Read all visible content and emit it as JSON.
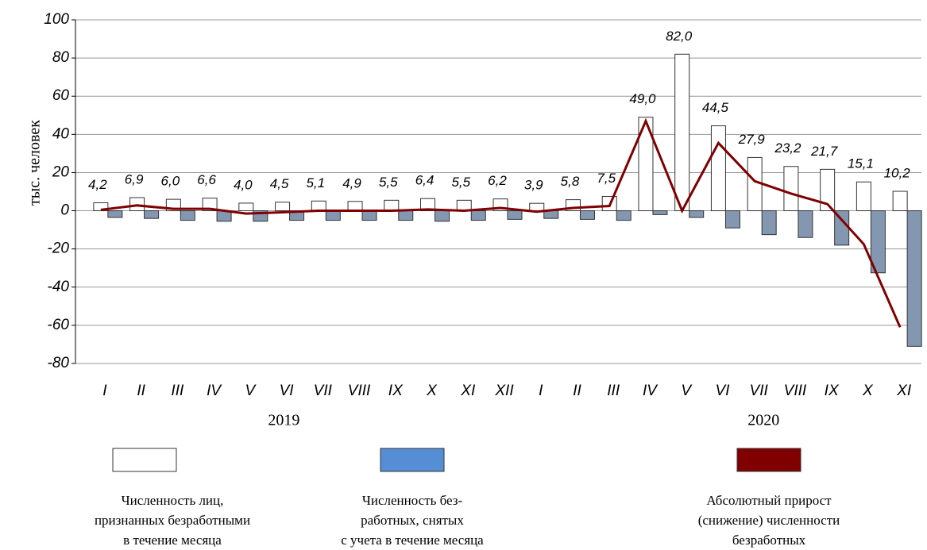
{
  "chart_data": {
    "type": "bar_line",
    "y_label": "тыс. человек",
    "categories": [
      "I",
      "II",
      "III",
      "IV",
      "V",
      "VI",
      "VII",
      "VIII",
      "IX",
      "X",
      "XI",
      "XII",
      "I",
      "II",
      "III",
      "IV",
      "V",
      "VI",
      "VII",
      "VIII",
      "IX",
      "X",
      "XI"
    ],
    "years": [
      "2019",
      "2020"
    ],
    "series": [
      {
        "name": "Численность лиц,\nпризнанных безработными\nв течение месяца",
        "type": "bar",
        "color": "#ffffff",
        "values": [
          4.2,
          6.9,
          6.0,
          6.6,
          4.0,
          4.5,
          5.1,
          4.9,
          5.5,
          6.4,
          5.5,
          6.2,
          3.9,
          5.8,
          7.5,
          49.0,
          82.0,
          44.5,
          27.9,
          23.2,
          21.7,
          15.1,
          10.2
        ],
        "value_labels": [
          "4,2",
          "6,9",
          "6,0",
          "6,6",
          "4,0",
          "4,5",
          "5,1",
          "4,9",
          "5,5",
          "6,4",
          "5,5",
          "6,2",
          "3,9",
          "5,8",
          "7,5",
          "49,0",
          "82,0",
          "44,5",
          "27,9",
          "23,2",
          "21,7",
          "15,1",
          "10,2"
        ]
      },
      {
        "name": "Численность без-\nработных, снятых\nс учета в течение месяца",
        "type": "bar",
        "color": "#8497b0",
        "values": [
          -3.5,
          -4,
          -5,
          -5.5,
          -5.5,
          -5,
          -5,
          -5,
          -5,
          -5.5,
          -5,
          -4.5,
          -4,
          -4.5,
          -5,
          -2,
          -3.5,
          -9,
          -12.5,
          -14,
          -18,
          -32.5,
          -71
        ]
      },
      {
        "name": "Абсолютный прирост\n(снижение) численности\nбезработных",
        "type": "line",
        "color": "#7f0000",
        "values": [
          0.5,
          2.8,
          1,
          1,
          -1.5,
          -0.8,
          0,
          0,
          0,
          0.7,
          0,
          1.5,
          -0.5,
          1.5,
          2.5,
          47,
          0,
          35.5,
          15.5,
          9,
          3.5,
          -17.5,
          -61
        ]
      }
    ],
    "ylim": [
      -80,
      100
    ],
    "yticks": [
      100,
      80,
      60,
      40,
      20,
      0,
      -20,
      -40,
      -60,
      -80
    ],
    "grid": true
  }
}
